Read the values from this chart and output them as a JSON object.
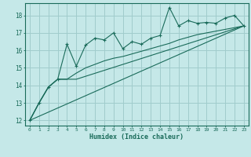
{
  "bg_color": "#c5e8e8",
  "grid_color": "#a0cccc",
  "line_color": "#1a6b5a",
  "xlabel": "Humidex (Indice chaleur)",
  "ylim": [
    11.7,
    18.7
  ],
  "xlim": [
    -0.5,
    23.5
  ],
  "yticks": [
    12,
    13,
    14,
    15,
    16,
    17,
    18
  ],
  "xticks": [
    0,
    1,
    2,
    3,
    4,
    5,
    6,
    7,
    8,
    9,
    10,
    11,
    12,
    13,
    14,
    15,
    16,
    17,
    18,
    19,
    20,
    21,
    22,
    23
  ],
  "main_x": [
    0,
    1,
    2,
    3,
    4,
    5,
    6,
    7,
    8,
    9,
    10,
    11,
    12,
    13,
    14,
    15,
    16,
    17,
    18,
    19,
    20,
    21,
    22,
    23
  ],
  "main_y": [
    12.0,
    13.0,
    13.9,
    14.35,
    16.35,
    15.1,
    16.3,
    16.7,
    16.6,
    17.0,
    16.1,
    16.5,
    16.35,
    16.7,
    16.85,
    18.45,
    17.4,
    17.7,
    17.55,
    17.6,
    17.55,
    17.85,
    18.0,
    17.4
  ],
  "line2_x": [
    0,
    1,
    2,
    3,
    4,
    5,
    23
  ],
  "line2_y": [
    12.0,
    13.0,
    13.9,
    14.35,
    14.35,
    14.35,
    17.4
  ],
  "line3_x": [
    0,
    23
  ],
  "line3_y": [
    12.0,
    17.4
  ],
  "line4_x": [
    0,
    1,
    2,
    3,
    4,
    5,
    6,
    7,
    8,
    9,
    10,
    11,
    12,
    13,
    14,
    15,
    16,
    17,
    18,
    19,
    20,
    21,
    22,
    23
  ],
  "line4_y": [
    12.0,
    13.0,
    13.9,
    14.35,
    14.35,
    14.7,
    15.0,
    15.2,
    15.4,
    15.55,
    15.65,
    15.8,
    15.95,
    16.1,
    16.25,
    16.4,
    16.6,
    16.75,
    16.9,
    17.0,
    17.1,
    17.2,
    17.3,
    17.4
  ]
}
